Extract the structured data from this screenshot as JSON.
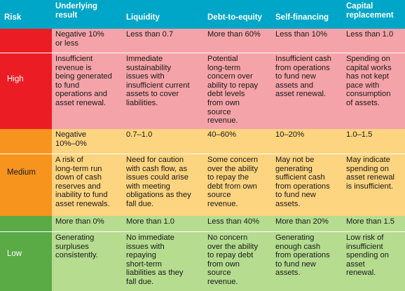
{
  "headers": {
    "risk": "Risk",
    "underlying": [
      "Underlying",
      "result"
    ],
    "liquidity": "Liquidity",
    "debt": "Debt-to-equity",
    "self": "Self-financing",
    "capital": [
      "Capital",
      "replacement"
    ]
  },
  "colors": {
    "header": "#00a6c8",
    "high_label": "#ec1c24",
    "high_band": "#f4a3a8",
    "medium_label": "#f7941e",
    "medium_band": "#fdd47f",
    "low_label": "#5aaa46",
    "low_band": "#b5dc8f"
  },
  "rows": {
    "high": {
      "label": "High",
      "thresholds": [
        [
          "Negative 10%",
          "or less"
        ],
        [
          "Less than 0.7"
        ],
        [
          "More than 60%"
        ],
        [
          "Less than 10%"
        ],
        [
          "Less than 1.0"
        ]
      ],
      "descriptions": [
        [
          "Insufficient",
          "revenue is",
          "being generated",
          "to fund",
          "operations and",
          "asset renewal."
        ],
        [
          "Immediate",
          "sustainability",
          "issues with",
          "insufficient current",
          "assets to cover",
          "liabilities."
        ],
        [
          "Potential",
          "long-term",
          "concern over",
          "ability to repay",
          "debt levels",
          "from own",
          "source",
          "revenue."
        ],
        [
          "Insufficient cash",
          "from operations",
          "to fund new",
          "assets and",
          "asset renewal."
        ],
        [
          "Spending on",
          "capital works",
          "has not kept",
          "pace with",
          "consumption",
          "of assets."
        ]
      ]
    },
    "medium": {
      "label": "Medium",
      "thresholds": [
        [
          "Negative",
          "10%–0%"
        ],
        [
          "0.7–1.0"
        ],
        [
          "40–60%"
        ],
        [
          "10–20%"
        ],
        [
          "1.0–1.5"
        ]
      ],
      "descriptions": [
        [
          "A risk of",
          "long-term run",
          "down of cash",
          "reserves and",
          "inability to fund",
          "asset renewals."
        ],
        [
          "Need for caution",
          "with cash flow, as",
          "issues could arise",
          "with meeting",
          "obligations as they",
          "fall due."
        ],
        [
          "Some concern",
          "over the ability",
          "to repay the",
          "debt from own",
          "source",
          "revenue."
        ],
        [
          "May not be",
          "generating",
          "sufficient cash",
          "from operations",
          "to fund new",
          "assets."
        ],
        [
          "May indicate",
          "spending on",
          "asset renewal",
          "is insufficient."
        ]
      ]
    },
    "low": {
      "label": "Low",
      "thresholds": [
        [
          "More than 0%"
        ],
        [
          "More than 1.0"
        ],
        [
          "Less than 40%"
        ],
        [
          "More than 20%"
        ],
        [
          "More than 1.5"
        ]
      ],
      "descriptions": [
        [
          "Generating",
          "surpluses",
          "consistently."
        ],
        [
          "No immediate",
          "issues with",
          "repaying",
          "short-term",
          "liabilities as they",
          "fall due."
        ],
        [
          "No concern",
          "over the ability",
          "to repay debt",
          "from own",
          "source",
          "revenue."
        ],
        [
          "Generating",
          "enough cash",
          "from operations",
          "to fund new",
          "assets."
        ],
        [
          "Low risk of",
          "insufficient",
          "spending on",
          "asset",
          "renewal."
        ]
      ]
    }
  }
}
